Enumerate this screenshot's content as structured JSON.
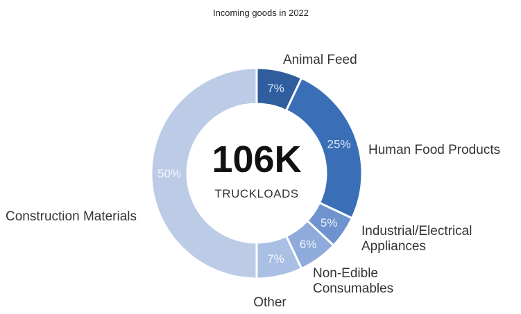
{
  "chart_data": {
    "type": "pie",
    "style": "donut",
    "title": "Incoming goods in 2022",
    "center_value": "106K",
    "center_unit": "TRUCKLOADS",
    "slices": [
      {
        "name": "Animal Feed",
        "value": 7,
        "label": "7%",
        "color": "#2f5d9e",
        "pct_color": "#dce6f5"
      },
      {
        "name": "Human Food Products",
        "value": 25,
        "label": "25%",
        "color": "#3a6fb8",
        "pct_color": "#dce6f5"
      },
      {
        "name": "Industrial/Electrical Appliances",
        "value": 5,
        "label": "5%",
        "color": "#6e93cf",
        "pct_color": "#eef3fb"
      },
      {
        "name": "Non-Edible Consumables",
        "value": 6,
        "label": "6%",
        "color": "#8eabdb",
        "pct_color": "#f3f6fc"
      },
      {
        "name": "Other",
        "value": 7,
        "label": "7%",
        "color": "#a9bfe3",
        "pct_color": "#f5f8fd"
      },
      {
        "name": "Construction Materials",
        "value": 50,
        "label": "50%",
        "color": "#bccbe6",
        "pct_color": "#f5f8fd"
      }
    ]
  }
}
